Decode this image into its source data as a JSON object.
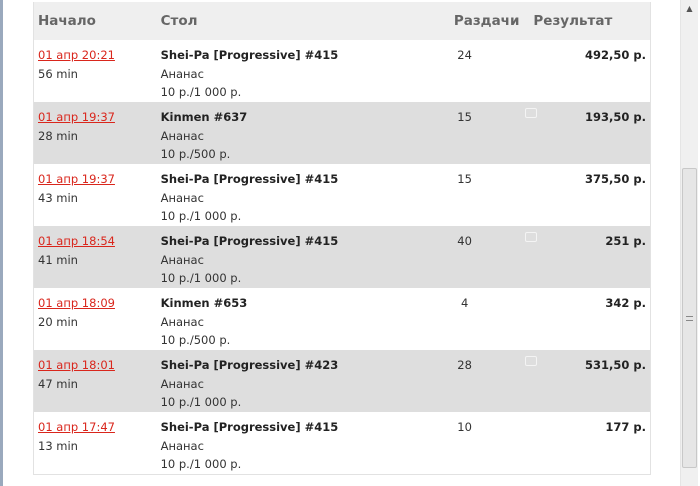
{
  "header": {
    "start": "Начало",
    "table": "Стол",
    "hands": "Раздачи",
    "result": "Результат"
  },
  "rows": [
    {
      "date": "01 апр 20:21",
      "duration": "56 min",
      "table": "Shei-Pa [Progressive] #415",
      "game": "Ананас",
      "stakes": "10 р./1 000 р.",
      "hands": "24",
      "result": "492,50 р.",
      "icon": false
    },
    {
      "date": "01 апр 19:37",
      "duration": "28 min",
      "table": "Kinmen #637",
      "game": "Ананас",
      "stakes": "10 р./500 р.",
      "hands": "15",
      "result": "193,50 р.",
      "icon": true
    },
    {
      "date": "01 апр 19:37",
      "duration": "43 min",
      "table": "Shei-Pa [Progressive] #415",
      "game": "Ананас",
      "stakes": "10 р./1 000 р.",
      "hands": "15",
      "result": "375,50 р.",
      "icon": false
    },
    {
      "date": "01 апр 18:54",
      "duration": "41 min",
      "table": "Shei-Pa [Progressive] #415",
      "game": "Ананас",
      "stakes": "10 р./1 000 р.",
      "hands": "40",
      "result": "251 р.",
      "icon": true
    },
    {
      "date": "01 апр 18:09",
      "duration": "20 min",
      "table": "Kinmen #653",
      "game": "Ананас",
      "stakes": "10 р./500 р.",
      "hands": "4",
      "result": "342 р.",
      "icon": false
    },
    {
      "date": "01 апр 18:01",
      "duration": "47 min",
      "table": "Shei-Pa [Progressive] #423",
      "game": "Ананас",
      "stakes": "10 р./1 000 р.",
      "hands": "28",
      "result": "531,50 р.",
      "icon": true
    },
    {
      "date": "01 апр 17:47",
      "duration": "13 min",
      "table": "Shei-Pa [Progressive] #415",
      "game": "Ананас",
      "stakes": "10 р./1 000 р.",
      "hands": "10",
      "result": "177 р.",
      "icon": false
    }
  ],
  "colors": {
    "link": "#d9261c",
    "alt_row": "#dedede",
    "header_bg": "#efefef"
  }
}
